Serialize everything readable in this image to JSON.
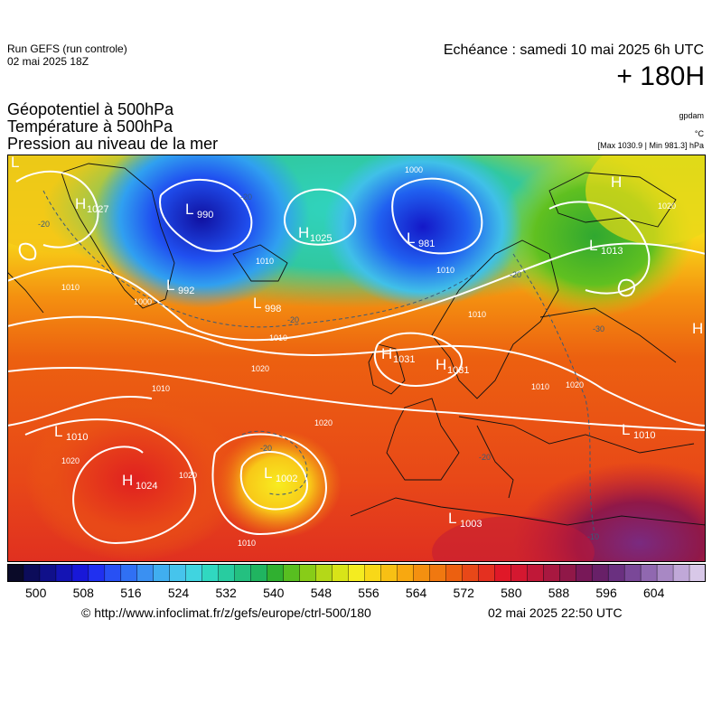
{
  "header": {
    "run_line1": "Run GEFS (run controle)",
    "run_line2": "02 mai 2025 18Z",
    "echeance": "Echéance : samedi 10 mai 2025 6h UTC",
    "lead_time": "+ 180H",
    "field1": "Géopotentiel à 500hPa",
    "field2": "Température à 500hPa",
    "field3": "Pression au niveau de la mer",
    "unit_geo": "gpdam",
    "unit_temp": "°C",
    "unit_pres": "[Max 1030.9 | Min 981.3] hPa"
  },
  "map": {
    "pressure_centers": [
      {
        "type": "H",
        "value": "1027"
      },
      {
        "type": "L",
        "value": "990"
      },
      {
        "type": "H",
        "value": "1025"
      },
      {
        "type": "L",
        "value": "981"
      },
      {
        "type": "L",
        "value": "1013"
      },
      {
        "type": "L",
        "value": "992"
      },
      {
        "type": "L",
        "value": "998"
      },
      {
        "type": "H",
        "value": "1031"
      },
      {
        "type": "H",
        "value": "1031"
      },
      {
        "type": "L",
        "value": "1010"
      },
      {
        "type": "L",
        "value": "1010"
      },
      {
        "type": "H",
        "value": "1024"
      },
      {
        "type": "L",
        "value": "1002"
      },
      {
        "type": "L",
        "value": "1003"
      },
      {
        "type": "H",
        "value": ""
      },
      {
        "type": "H",
        "value": ""
      },
      {
        "type": "L",
        "value": ""
      }
    ],
    "isobar_labels": [
      "1000",
      "1010",
      "1010",
      "1010",
      "1020",
      "1020",
      "1020",
      "1020",
      "1010",
      "1010",
      "1010",
      "1000",
      "1020",
      "1020",
      "1010",
      "1010"
    ],
    "temperature_labels": [
      "-20",
      "-20",
      "-20",
      "-20",
      "-20",
      "-30",
      "-20",
      "-10"
    ]
  },
  "colorbar": {
    "colors": [
      "#0a0a28",
      "#0c0c5a",
      "#10108a",
      "#1414b4",
      "#1818d8",
      "#2030f0",
      "#2850f4",
      "#3070f4",
      "#3a90f2",
      "#40aef0",
      "#46c4ec",
      "#40d4e0",
      "#30d8c0",
      "#28cca0",
      "#24c080",
      "#20b460",
      "#30b030",
      "#58be20",
      "#88cc18",
      "#b4d818",
      "#d8e418",
      "#f4ec20",
      "#f8d818",
      "#f8c014",
      "#f8a810",
      "#f49010",
      "#f07810",
      "#ec6010",
      "#e84818",
      "#e43020",
      "#e01828",
      "#d41830",
      "#c01838",
      "#a81840",
      "#901848",
      "#781858",
      "#682068",
      "#6a3080",
      "#7a4898",
      "#9068b0",
      "#a888c4",
      "#c0a8d8",
      "#d8c8e8"
    ],
    "tick_labels": [
      "500",
      "508",
      "516",
      "524",
      "532",
      "540",
      "548",
      "556",
      "564",
      "572",
      "580",
      "588",
      "596",
      "604"
    ]
  },
  "footer": {
    "source": "© http://www.infoclimat.fr/z/gefs/europe/ctrl-500/180",
    "generated": "02 mai 2025 22:50 UTC"
  }
}
